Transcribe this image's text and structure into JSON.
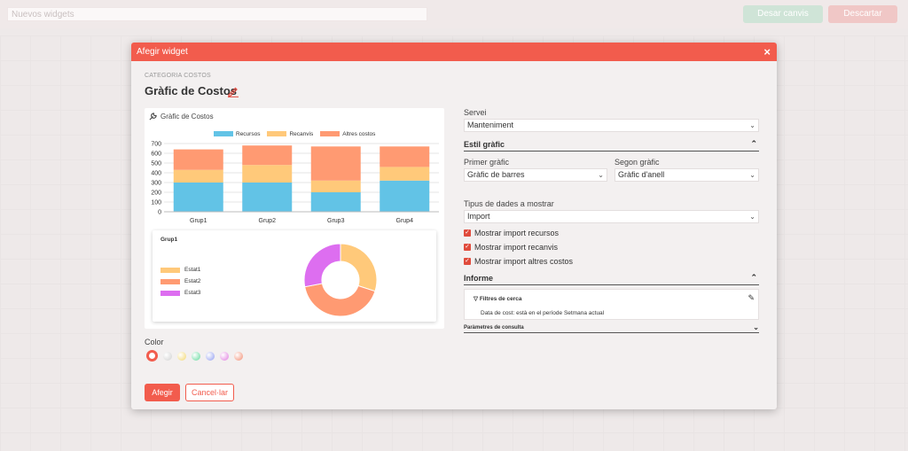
{
  "background": {
    "title_input": "Nuevos widgets",
    "save_label": "Desar canvis",
    "discard_label": "Descartar"
  },
  "modal": {
    "header_title": "Afegir widget",
    "close_icon": "×",
    "category": "CATEGORIA COSTOS",
    "title": "Gràfic de Costos",
    "preview_title": "Gràfic de Costos",
    "color_label": "Color",
    "add_label": "Afegir",
    "cancel_label": "Cancel·lar"
  },
  "colors": {
    "accent": "#f25c4d",
    "swatches": [
      "#ffffff",
      "#cfcfcf",
      "#f2d66b",
      "#5fd89a",
      "#8f9bf0",
      "#e07be0",
      "#f28a6e"
    ]
  },
  "chart_data": [
    {
      "type": "bar",
      "stacked": true,
      "categories": [
        "Grup1",
        "Grup2",
        "Grup3",
        "Grup4"
      ],
      "series": [
        {
          "name": "Recursos",
          "color": "#62c3e6",
          "values": [
            300,
            300,
            200,
            320
          ]
        },
        {
          "name": "Recanvis",
          "color": "#ffc97a",
          "values": [
            130,
            180,
            120,
            140
          ]
        },
        {
          "name": "Altres costos",
          "color": "#ff9a72",
          "values": [
            210,
            200,
            350,
            210
          ]
        }
      ],
      "ylim": [
        0,
        700
      ],
      "yticks": [
        0,
        100,
        200,
        300,
        400,
        500,
        600,
        700
      ],
      "legend": "top",
      "grid": true
    },
    {
      "type": "pie",
      "donut": true,
      "title": "Grup1",
      "labels": [
        "Estat1",
        "Estat2",
        "Estat3"
      ],
      "values": [
        30,
        42,
        28
      ],
      "colors": [
        "#ffc97a",
        "#ff9a72",
        "#dd6ef0"
      ],
      "legend": "left"
    }
  ],
  "form": {
    "servei_label": "Servei",
    "servei_value": "Manteniment",
    "estil_section": "Estil gràfic",
    "primer_label": "Primer gràfic",
    "primer_value": "Gràfic de barres",
    "segon_label": "Segon gràfic",
    "segon_value": "Gràfic d'anell",
    "tipus_label": "Tipus de dades a mostrar",
    "tipus_value": "Import",
    "checks": [
      "Mostrar import recursos",
      "Mostrar import recanvis",
      "Mostrar import altres costos"
    ],
    "informe_section": "Informe",
    "filter_title": "Filtres de cerca",
    "filter_text": "Data de cost: està en el període Setmana actual",
    "params_label": "Paràmetres de consulta"
  }
}
